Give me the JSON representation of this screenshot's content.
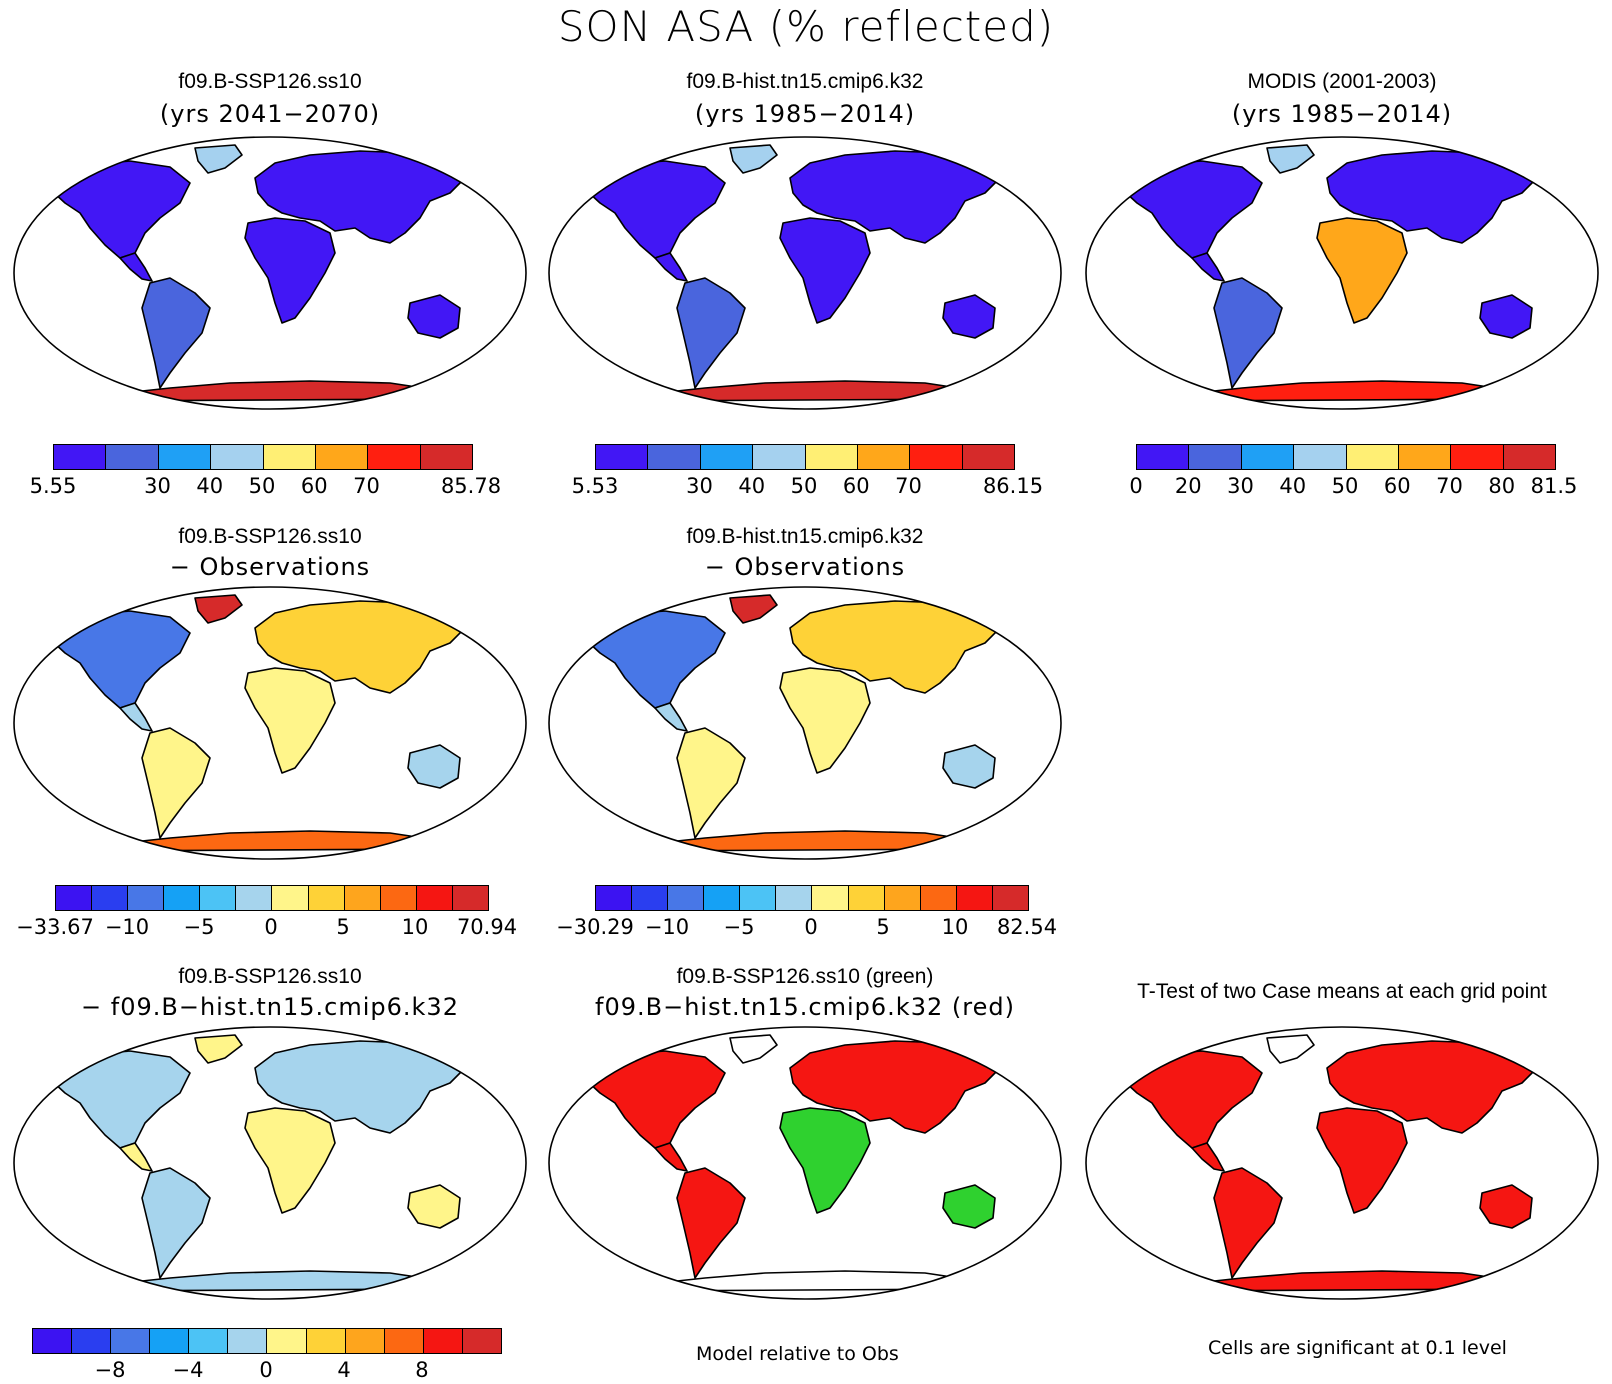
{
  "title": "SON ASA (% reflected)",
  "colors": {
    "abs": [
      "#4217f5",
      "#4a65dd",
      "#1fa0f5",
      "#a5d1ef",
      "#ffef74",
      "#ffa71a",
      "#ff1f10",
      "#d62a2a"
    ],
    "diff": [
      "#3c13f2",
      "#2a3ef0",
      "#4877e7",
      "#15a1f5",
      "#4cc3f5",
      "#a6d4ed",
      "#fff58a",
      "#fed237",
      "#fea51d",
      "#fc6812",
      "#f51612",
      "#d62a2a"
    ],
    "diff2": [
      "#3c13f2",
      "#2a3ef0",
      "#4877e7",
      "#15a1f5",
      "#4cc3f5",
      "#a6d4ed",
      "#fff58a",
      "#fed237",
      "#fea51d",
      "#fc6812",
      "#f51612",
      "#d62a2a"
    ],
    "ocean": "#ffffff"
  },
  "panels": [
    {
      "id": "p1",
      "title1": "f09.B-SSP126.ss10",
      "title2": "(yrs 2041−2070)",
      "style": "abs",
      "cb": "abs",
      "labels": [
        "5.55",
        "30",
        "40",
        "50",
        "60",
        "70",
        "85.78"
      ]
    },
    {
      "id": "p2",
      "title1": "f09.B-hist.tn15.cmip6.k32",
      "title2": "(yrs 1985−2014)",
      "style": "abs",
      "cb": "abs",
      "labels": [
        "5.53",
        "30",
        "40",
        "50",
        "60",
        "70",
        "86.15"
      ]
    },
    {
      "id": "p3",
      "title1": "MODIS (2001-2003)",
      "title2": "(yrs 1985−2014)",
      "style": "abs",
      "cb": "abs",
      "labels": [
        "0",
        "20",
        "30",
        "40",
        "50",
        "60",
        "70",
        "80",
        "81.5"
      ]
    },
    {
      "id": "p4",
      "title1": "f09.B-SSP126.ss10",
      "title2": "− Observations",
      "style": "bias",
      "cb": "diff",
      "labels": [
        "−33.67",
        "−10",
        "−5",
        "0",
        "5",
        "10",
        "70.94"
      ]
    },
    {
      "id": "p5",
      "title1": "f09.B-hist.tn15.cmip6.k32",
      "title2": "− Observations",
      "style": "bias",
      "cb": "diff",
      "labels": [
        "−30.29",
        "−10",
        "−5",
        "0",
        "5",
        "10",
        "82.54"
      ]
    },
    {
      "id": "p6",
      "title1": "f09.B-SSP126.ss10",
      "title2": "− f09.B−hist.tn15.cmip6.k32",
      "style": "cdiff",
      "cb": "diff2",
      "labels": [
        "−8",
        "−4",
        "0",
        "4",
        "8"
      ]
    },
    {
      "id": "p7",
      "title1": "f09.B-SSP126.ss10 (green)",
      "title2": "f09.B−hist.tn15.cmip6.k32 (red)",
      "style": "gr",
      "cb": null,
      "labels": []
    },
    {
      "id": "p8",
      "title1": "T-Test of two Case means at each grid point",
      "title2": "",
      "style": "tt",
      "cb": null,
      "labels": []
    }
  ],
  "footnotes": {
    "model_rel": "Model relative to Obs",
    "cells_sig": "Cells are significant at 0.1 level"
  }
}
